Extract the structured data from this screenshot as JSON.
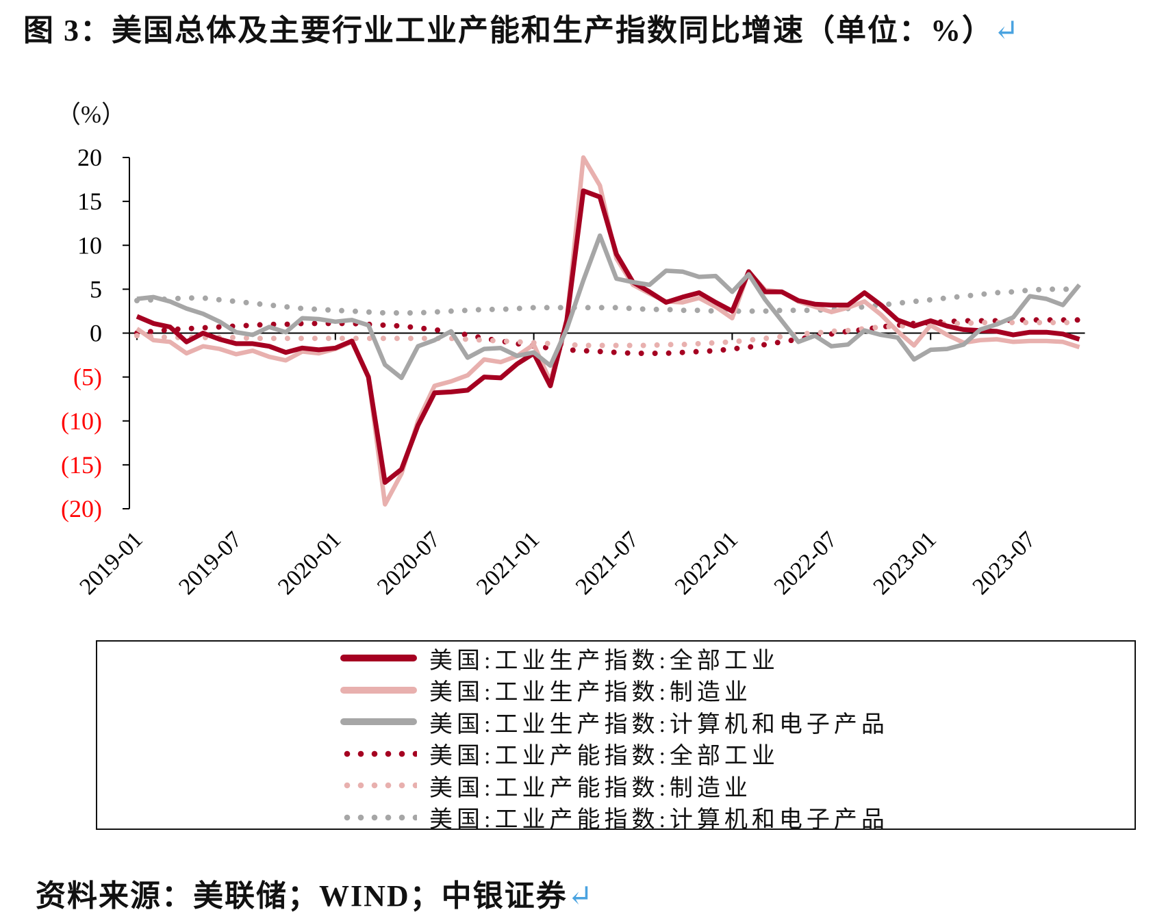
{
  "title": "图 3：美国总体及主要行业工业产能和生产指数同比增速（单位：%）",
  "return_mark": "↵",
  "source": "资料来源：美联储；WIND；中银证券",
  "chart_data": {
    "type": "line",
    "ylabel": "（%）",
    "ylim": [
      -20,
      20
    ],
    "yticks": [
      20,
      15,
      10,
      5,
      0,
      -5,
      -10,
      -15,
      -20
    ],
    "ytick_labels": [
      "20",
      "15",
      "10",
      "5",
      "0",
      "(5)",
      "(10)",
      "(15)",
      "(20)"
    ],
    "negative_label_color": "#ff0000",
    "x_start": "2019-01",
    "x_end": "2023-10",
    "x_frequency": "monthly",
    "xtick_labels": [
      "2019-01",
      "2019-07",
      "2020-01",
      "2020-07",
      "2021-01",
      "2021-07",
      "2022-01",
      "2022-07",
      "2023-01",
      "2023-07"
    ],
    "grid": false,
    "legend_position": "bottom",
    "series": [
      {
        "name": "美国:工业生产指数:全部工业",
        "color": "#a50021",
        "style": "solid",
        "values": [
          1.9,
          1.1,
          0.7,
          -1.0,
          0.0,
          -0.7,
          -1.2,
          -1.2,
          -1.5,
          -2.2,
          -1.7,
          -1.9,
          -1.7,
          -0.9,
          -5.0,
          -17.0,
          -15.5,
          -10.5,
          -6.8,
          -6.7,
          -6.5,
          -5.0,
          -5.1,
          -3.5,
          -2.3,
          -6.0,
          1.5,
          16.2,
          15.5,
          9.0,
          5.8,
          4.7,
          3.5,
          4.1,
          4.6,
          3.5,
          2.5,
          7.0,
          4.7,
          4.7,
          3.7,
          3.3,
          3.2,
          3.2,
          4.6,
          3.2,
          1.5,
          0.8,
          1.4,
          0.8,
          0.4,
          0.3,
          0.2,
          -0.2,
          0.1,
          0.1,
          -0.1,
          -0.7
        ]
      },
      {
        "name": "美国:工业生产指数:制造业",
        "color": "#e8b0ae",
        "style": "solid",
        "values": [
          0.5,
          -0.8,
          -1.0,
          -2.3,
          -1.5,
          -1.8,
          -2.4,
          -2.0,
          -2.7,
          -3.1,
          -2.1,
          -2.3,
          -1.8,
          -1.0,
          -5.0,
          -19.5,
          -16.0,
          -10.0,
          -6.0,
          -5.5,
          -4.8,
          -3.0,
          -3.3,
          -2.6,
          -1.3,
          -5.5,
          1.5,
          20.0,
          16.8,
          8.5,
          5.5,
          4.5,
          3.6,
          3.5,
          4.0,
          3.0,
          1.7,
          7.0,
          4.9,
          4.7,
          3.6,
          3.0,
          2.4,
          2.9,
          3.6,
          2.1,
          0.2,
          -1.4,
          0.9,
          -0.2,
          -1.1,
          -0.8,
          -0.7,
          -1.0,
          -0.9,
          -0.9,
          -1.0,
          -1.6
        ]
      },
      {
        "name": "美国:工业生产指数:计算机和电子产品",
        "color": "#a6a6a6",
        "style": "solid",
        "values": [
          3.9,
          4.1,
          3.6,
          2.8,
          2.2,
          1.3,
          0.1,
          -0.2,
          0.7,
          0.1,
          1.7,
          1.6,
          1.3,
          1.5,
          0.9,
          -3.6,
          -5.1,
          -1.5,
          -0.8,
          0.2,
          -2.8,
          -1.8,
          -1.7,
          -2.6,
          -2.2,
          -3.7,
          0.5,
          6.0,
          11.1,
          6.2,
          5.8,
          5.5,
          7.1,
          7.0,
          6.4,
          6.5,
          4.7,
          6.7,
          3.8,
          1.4,
          -1.0,
          -0.3,
          -1.5,
          -1.3,
          0.3,
          -0.2,
          -0.5,
          -3.0,
          -1.9,
          -1.8,
          -1.3,
          0.4,
          1.0,
          1.8,
          4.2,
          3.9,
          3.2,
          5.5
        ]
      },
      {
        "name": "美国:工业产能指数:全部工业",
        "color": "#a50021",
        "style": "dotted",
        "values": [
          0.0,
          0.2,
          0.4,
          0.5,
          0.6,
          0.7,
          0.8,
          0.9,
          1.0,
          1.0,
          1.1,
          1.1,
          1.1,
          1.1,
          1.0,
          0.9,
          0.8,
          0.6,
          0.4,
          0.1,
          -0.2,
          -0.6,
          -0.9,
          -1.2,
          -1.5,
          -1.7,
          -1.9,
          -2.0,
          -2.1,
          -2.2,
          -2.3,
          -2.3,
          -2.3,
          -2.2,
          -2.1,
          -2.0,
          -1.8,
          -1.6,
          -1.3,
          -1.0,
          -0.7,
          -0.4,
          -0.1,
          0.2,
          0.4,
          0.7,
          0.9,
          1.1,
          1.2,
          1.3,
          1.4,
          1.4,
          1.4,
          1.5,
          1.5,
          1.5,
          1.5,
          1.5
        ]
      },
      {
        "name": "美国:工业产能指数:制造业",
        "color": "#e8b0ae",
        "style": "dotted",
        "values": [
          -0.3,
          -0.4,
          -0.5,
          -0.5,
          -0.5,
          -0.5,
          -0.5,
          -0.6,
          -0.6,
          -0.6,
          -0.6,
          -0.6,
          -0.6,
          -0.6,
          -0.6,
          -0.6,
          -0.6,
          -0.6,
          -0.6,
          -0.6,
          -0.7,
          -0.8,
          -0.9,
          -1.0,
          -1.1,
          -1.2,
          -1.3,
          -1.4,
          -1.4,
          -1.4,
          -1.4,
          -1.4,
          -1.3,
          -1.3,
          -1.2,
          -1.1,
          -1.0,
          -0.8,
          -0.6,
          -0.4,
          -0.1,
          0.0,
          0.2,
          0.3,
          0.5,
          0.7,
          0.8,
          0.9,
          1.0,
          1.1,
          1.1,
          1.2,
          1.2,
          1.2,
          1.2,
          1.2,
          1.2,
          1.2
        ]
      },
      {
        "name": "美国:工业产能指数:计算机和电子产品",
        "color": "#a6a6a6",
        "style": "dotted",
        "values": [
          3.7,
          3.8,
          3.9,
          4.0,
          4.0,
          3.8,
          3.6,
          3.4,
          3.2,
          3.0,
          2.8,
          2.7,
          2.6,
          2.5,
          2.4,
          2.3,
          2.3,
          2.3,
          2.4,
          2.5,
          2.6,
          2.7,
          2.7,
          2.8,
          2.9,
          2.9,
          2.9,
          2.9,
          2.9,
          2.9,
          2.8,
          2.7,
          2.7,
          2.6,
          2.6,
          2.5,
          2.5,
          2.5,
          2.5,
          2.6,
          2.6,
          2.6,
          2.7,
          2.8,
          3.0,
          3.2,
          3.4,
          3.6,
          3.8,
          4.0,
          4.2,
          4.4,
          4.6,
          4.7,
          4.9,
          5.0,
          5.0,
          5.0
        ]
      }
    ]
  }
}
